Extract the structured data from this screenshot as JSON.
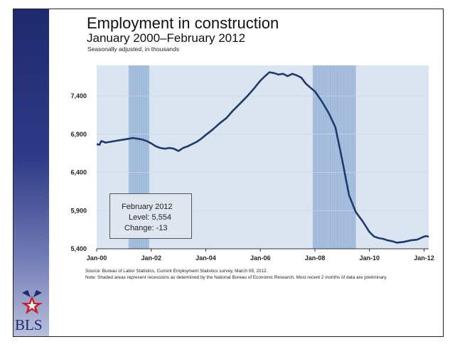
{
  "title": "Employment in construction",
  "subtitle_date": "January 2000–February 2012",
  "units_note": "Seasonally adjusted, in thousands",
  "callout": {
    "month": "February 2012",
    "level_text": "Level: 5,554",
    "change_text": "Change: -13"
  },
  "source_note": "Source: Bureau of Labor Statistics, Current Employment Statistics survey, March 09, 2012.",
  "recession_note": "Note: Shaded areas represent recessions as determined by the National Bureau of Economic Research. Most recent 2 months of data are preliminary.",
  "logo_text": "BLS",
  "colors": {
    "line": "#1f3a6b",
    "plot_bg": "#dbe5f1",
    "recession": "#9db7d9",
    "sidebar": "#1f2a6e"
  },
  "chart_data": {
    "type": "line",
    "title": "Employment in construction",
    "xlabel": "",
    "ylabel": "Thousands, seasonally adjusted",
    "x_tick_labels": [
      "Jan-00",
      "Jan-02",
      "Jan-04",
      "Jan-06",
      "Jan-08",
      "Jan-10",
      "Jan-12"
    ],
    "y_tick_labels": [
      "7,400",
      "6,900",
      "6,400",
      "5,900",
      "5,400"
    ],
    "y_ticks": [
      7400,
      6900,
      6400,
      5900,
      5400
    ],
    "ylim": [
      5400,
      7800
    ],
    "xlim": [
      2000.0,
      2012.17
    ],
    "recessions": [
      [
        2001.17,
        2001.92
      ],
      [
        2007.92,
        2009.5
      ]
    ],
    "series": [
      {
        "name": "Construction employment",
        "x": [
          2000.0,
          2000.1,
          2000.17,
          2000.33,
          2000.5,
          2000.67,
          2000.83,
          2001.0,
          2001.17,
          2001.33,
          2001.5,
          2001.67,
          2001.83,
          2002.0,
          2002.17,
          2002.33,
          2002.5,
          2002.67,
          2002.83,
          2003.0,
          2003.17,
          2003.33,
          2003.5,
          2003.67,
          2003.83,
          2004.0,
          2004.25,
          2004.5,
          2004.75,
          2005.0,
          2005.25,
          2005.5,
          2005.75,
          2006.0,
          2006.17,
          2006.33,
          2006.5,
          2006.67,
          2006.83,
          2007.0,
          2007.17,
          2007.33,
          2007.5,
          2007.67,
          2007.83,
          2008.0,
          2008.25,
          2008.5,
          2008.75,
          2009.0,
          2009.25,
          2009.5,
          2009.75,
          2010.0,
          2010.17,
          2010.33,
          2010.5,
          2010.67,
          2010.83,
          2011.0,
          2011.25,
          2011.5,
          2011.75,
          2012.0,
          2012.1,
          2012.17
        ],
        "values": [
          6770,
          6760,
          6810,
          6790,
          6800,
          6810,
          6820,
          6830,
          6840,
          6850,
          6840,
          6830,
          6810,
          6780,
          6740,
          6720,
          6710,
          6720,
          6710,
          6680,
          6720,
          6740,
          6770,
          6800,
          6840,
          6890,
          6960,
          7040,
          7110,
          7210,
          7300,
          7390,
          7490,
          7600,
          7660,
          7710,
          7700,
          7680,
          7690,
          7660,
          7690,
          7670,
          7640,
          7560,
          7510,
          7460,
          7330,
          7180,
          6990,
          6560,
          6100,
          5880,
          5760,
          5620,
          5560,
          5540,
          5530,
          5510,
          5500,
          5480,
          5490,
          5510,
          5520,
          5560,
          5567,
          5554
        ]
      }
    ]
  }
}
